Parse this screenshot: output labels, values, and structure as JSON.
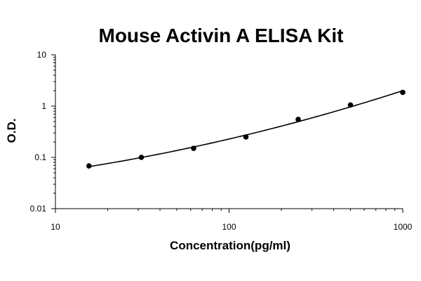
{
  "chart_data": {
    "type": "scatter",
    "title": "Mouse Activin A ELISA Kit",
    "xlabel": "Concentration(pg/ml)",
    "ylabel": "O.D.",
    "x_scale": "log",
    "y_scale": "log",
    "xlim": [
      10,
      1000
    ],
    "ylim": [
      0.01,
      10
    ],
    "x_ticks": [
      "10",
      "100",
      "1000"
    ],
    "y_ticks": [
      "0.01",
      "0.1",
      "1",
      "10"
    ],
    "grid": false,
    "legend": "none",
    "colors": {
      "points": "#000000",
      "curve": "#000000"
    },
    "series": [
      {
        "x": [
          15.6,
          31.25,
          62.5,
          125,
          250,
          500,
          1000
        ],
        "y": [
          0.068,
          0.1,
          0.15,
          0.25,
          0.55,
          1.05,
          1.85
        ],
        "fit_curve": true
      }
    ]
  }
}
